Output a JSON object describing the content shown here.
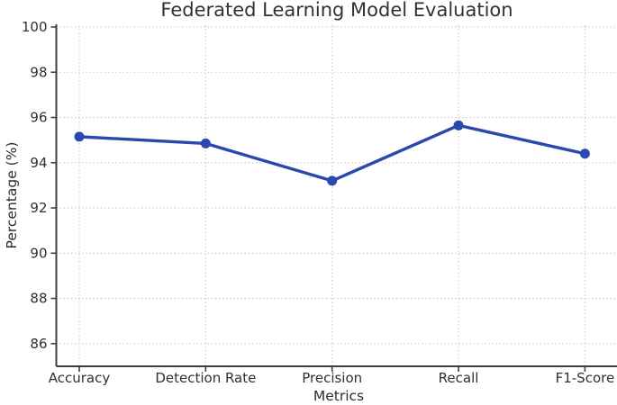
{
  "chart_data": {
    "type": "line",
    "title": "Federated Learning Model Evaluation",
    "xlabel": "Metrics",
    "ylabel": "Percentage (%)",
    "categories": [
      "Accuracy",
      "Detection Rate",
      "Precision",
      "Recall",
      "F1-Score"
    ],
    "values": [
      95.15,
      94.85,
      93.2,
      95.65,
      94.4
    ],
    "yticks": [
      86,
      88,
      90,
      92,
      94,
      96,
      98,
      100
    ],
    "ylim": [
      85,
      100.1
    ],
    "grid": "dotted, both axes",
    "legend": "none",
    "line_color": "#2b49ad",
    "marker": "filled-circle",
    "spine_color": "#3f3f3f",
    "grid_color": "#c9c9c9"
  }
}
